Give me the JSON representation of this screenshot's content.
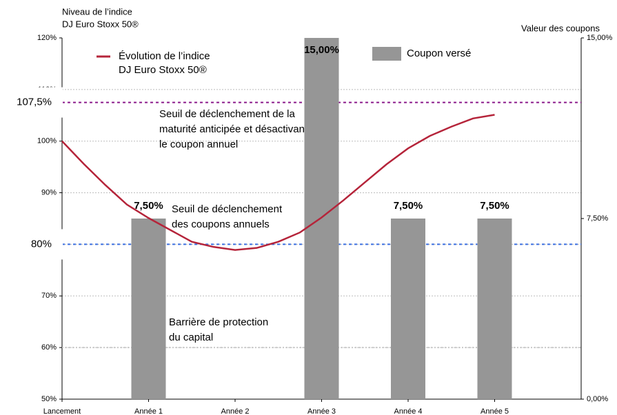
{
  "chart_data": {
    "type": "bar_line",
    "y_axis_title": [
      "Niveau de l’indice",
      "DJ Euro Stoxx 50®"
    ],
    "y2_axis_title": "Valeur des coupons",
    "categories": [
      "Lancement",
      "Année 1",
      "Année 2",
      "Année 3",
      "Année 4",
      "Année 5"
    ],
    "xlim": [
      0,
      6
    ],
    "ylim": [
      50,
      120
    ],
    "yticks": [
      {
        "value": 50,
        "label": "50%"
      },
      {
        "value": 60,
        "label": "60%"
      },
      {
        "value": 70,
        "label": "70%"
      },
      {
        "value": 80,
        "label": "80%"
      },
      {
        "value": 90,
        "label": "90%"
      },
      {
        "value": 100,
        "label": "100%"
      },
      {
        "value": 110,
        "label": "110%"
      },
      {
        "value": 120,
        "label": "120%"
      }
    ],
    "y2lim": [
      0,
      15
    ],
    "y2ticks": [
      {
        "value": 0,
        "label": "0,00%"
      },
      {
        "value": 7.5,
        "label": "7,50%"
      },
      {
        "value": 15,
        "label": "15,00%"
      }
    ],
    "grid": true,
    "series": [
      {
        "name": "Évolution de l’indice\nDJ Euro Stoxx 50®",
        "type": "line",
        "color": "#b5243a",
        "x": [
          0,
          0.25,
          0.5,
          0.75,
          1,
          1.25,
          1.5,
          1.75,
          2,
          2.25,
          2.5,
          2.75,
          3,
          3.25,
          3.5,
          3.75,
          4,
          4.25,
          4.5,
          4.75,
          5
        ],
        "values": [
          100,
          95.6,
          91.5,
          87.7,
          85.1,
          82.8,
          80.5,
          79.5,
          78.9,
          79.3,
          80.5,
          82.3,
          85.2,
          88.5,
          92,
          95.5,
          98.6,
          101,
          102.8,
          104.4,
          105.1
        ]
      },
      {
        "name": "Coupon versé",
        "type": "bar",
        "axis": "y2",
        "color": "#969696",
        "values": [
          null,
          7.5,
          null,
          15,
          7.5,
          7.5
        ],
        "value_labels": [
          null,
          "7,50%",
          null,
          "15,00%",
          "7,50%",
          "7,50%"
        ]
      }
    ],
    "annotations": [
      {
        "value": 107.5,
        "label": "107,5%",
        "color": "#8b1a8b",
        "text": "Seuil de déclenchement de la\nmaturité anticipée et désactivant\nle coupon annuel"
      },
      {
        "value": 80,
        "label": "80%",
        "color": "#3b6fe0",
        "text": "Seuil de déclenchement\ndes coupons annuels"
      },
      {
        "value": 60,
        "color": "#c8c8c8",
        "text": "Barrière de protection\ndu capital"
      }
    ]
  }
}
